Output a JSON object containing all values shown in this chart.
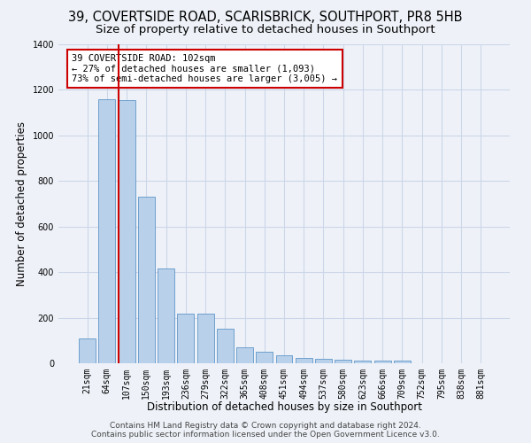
{
  "title": "39, COVERTSIDE ROAD, SCARISBRICK, SOUTHPORT, PR8 5HB",
  "subtitle": "Size of property relative to detached houses in Southport",
  "xlabel": "Distribution of detached houses by size in Southport",
  "ylabel": "Number of detached properties",
  "categories": [
    "21sqm",
    "64sqm",
    "107sqm",
    "150sqm",
    "193sqm",
    "236sqm",
    "279sqm",
    "322sqm",
    "365sqm",
    "408sqm",
    "451sqm",
    "494sqm",
    "537sqm",
    "580sqm",
    "623sqm",
    "666sqm",
    "709sqm",
    "752sqm",
    "795sqm",
    "838sqm",
    "881sqm"
  ],
  "values": [
    107,
    1160,
    1155,
    730,
    415,
    218,
    218,
    150,
    70,
    52,
    35,
    25,
    18,
    15,
    13,
    12,
    10,
    0,
    0,
    0,
    0
  ],
  "bar_color": "#b8d0ea",
  "bar_edge_color": "#6096c8",
  "grid_color": "#ccd6e8",
  "background_color": "#eef2f8",
  "vline_color": "#cc0000",
  "vline_x_index": 2,
  "annotation_text": "39 COVERTSIDE ROAD: 102sqm\n← 27% of detached houses are smaller (1,093)\n73% of semi-detached houses are larger (3,005) →",
  "annotation_box_color": "#ffffff",
  "annotation_edge_color": "#cc0000",
  "footer": "Contains HM Land Registry data © Crown copyright and database right 2024.\nContains public sector information licensed under the Open Government Licence v3.0.",
  "ylim": [
    0,
    1400
  ],
  "yticks": [
    0,
    200,
    400,
    600,
    800,
    1000,
    1200,
    1400
  ],
  "title_fontsize": 10.5,
  "subtitle_fontsize": 9.5,
  "xlabel_fontsize": 8.5,
  "ylabel_fontsize": 8.5,
  "tick_fontsize": 7,
  "annotation_fontsize": 7.5,
  "footer_fontsize": 6.5
}
